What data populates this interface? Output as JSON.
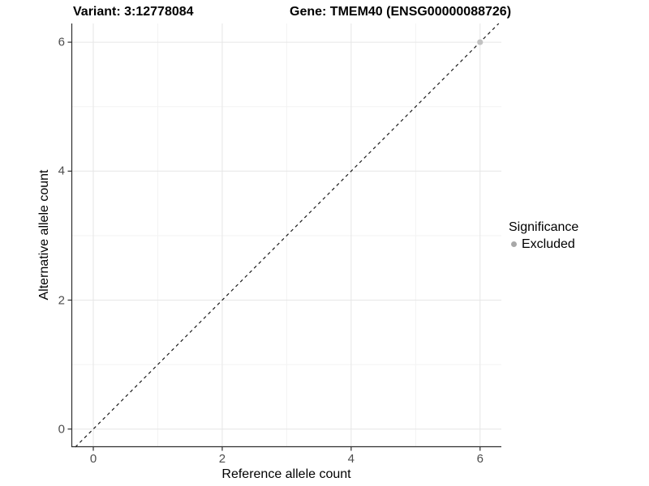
{
  "page": {
    "background": "#ffffff"
  },
  "header": {
    "title_left": "Variant: 3:12778084",
    "title_right": "Gene: TMEM40 (ENSG00000088726)"
  },
  "chart_data": {
    "type": "scatter",
    "title_left": "Variant: 3:12778084",
    "title_right": "Gene: TMEM40 (ENSG00000088726)",
    "xlabel": "Reference allele count",
    "ylabel": "Alternative allele count",
    "xlim": [
      -0.34,
      6.33
    ],
    "ylim": [
      -0.28,
      6.29
    ],
    "xticks": [
      0,
      2,
      4,
      6
    ],
    "yticks": [
      0,
      2,
      4,
      6
    ],
    "xtick_labels": [
      "0",
      "2",
      "4",
      "6"
    ],
    "ytick_labels": [
      "0",
      "2",
      "4",
      "6"
    ],
    "minor_xticks": [
      1,
      3,
      5
    ],
    "minor_yticks": [
      1,
      3,
      5
    ],
    "grid": "major+minor",
    "reference_line": {
      "kind": "identity",
      "slope": 1,
      "intercept": 0,
      "style": "dashed",
      "color": "#1a1a1a"
    },
    "series": [
      {
        "name": "Excluded",
        "color": "#c2c2c2",
        "points": [
          [
            6,
            6
          ]
        ]
      }
    ],
    "legend": {
      "title": "Significance",
      "position": "right",
      "items": [
        {
          "label": "Excluded",
          "color": "#a8a8a8"
        }
      ]
    },
    "colors": {
      "grid_major": "#e6e6e6",
      "grid_minor": "#f3f3f3",
      "axis_line": "#2f2f2f",
      "tick_label": "#4d4d4d"
    }
  }
}
